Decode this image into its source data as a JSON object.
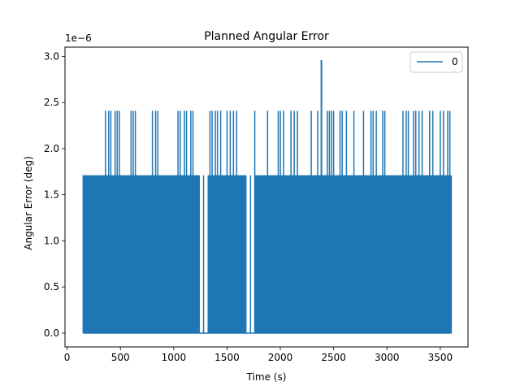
{
  "chart_data": {
    "type": "line",
    "title": "Planned Angular Error",
    "xlabel": "Time (s)",
    "ylabel": "Angular Error (deg)",
    "y_offset_text": "1e−6",
    "xlim": [
      -20,
      3760
    ],
    "ylim": [
      -0.15,
      3.1
    ],
    "y_unit_scale": 1e-06,
    "x_ticks": [
      0,
      500,
      1000,
      1500,
      2000,
      2500,
      3000,
      3500
    ],
    "x_tick_labels": [
      "0",
      "500",
      "1000",
      "1500",
      "2000",
      "2500",
      "3000",
      "3500"
    ],
    "y_ticks": [
      0.0,
      0.5,
      1.0,
      1.5,
      2.0,
      2.5,
      3.0
    ],
    "y_tick_labels": [
      "0.0",
      "0.5",
      "1.0",
      "1.5",
      "2.0",
      "2.5",
      "3.0"
    ],
    "grid": false,
    "legend": {
      "position": "top-right",
      "entries": [
        "0"
      ]
    },
    "series": [
      {
        "name": "0",
        "color": "#1f77b4",
        "x_range": [
          150,
          3605
        ],
        "levels": [
          0.0,
          1.71,
          2.41,
          2.96
        ],
        "spikes_to_2_41_at": [
          360,
          390,
          410,
          450,
          470,
          490,
          600,
          620,
          640,
          800,
          830,
          850,
          1040,
          1060,
          1100,
          1120,
          1160,
          1180,
          1340,
          1360,
          1390,
          1410,
          1440,
          1500,
          1530,
          1560,
          1590,
          1760,
          1880,
          1980,
          2000,
          2030,
          2100,
          2130,
          2160,
          2290,
          2350,
          2440,
          2460,
          2480,
          2500,
          2560,
          2580,
          2620,
          2690,
          2780,
          2850,
          2870,
          2900,
          2960,
          2980,
          3150,
          3180,
          3200,
          3250,
          3270,
          3300,
          3330,
          3400,
          3430,
          3500,
          3530,
          3570,
          3590
        ],
        "peak": {
          "x": 2385,
          "y": 2.96
        },
        "gap_at_zero": [
          [
            1240,
            1320
          ],
          [
            1680,
            1760
          ]
        ]
      }
    ]
  }
}
